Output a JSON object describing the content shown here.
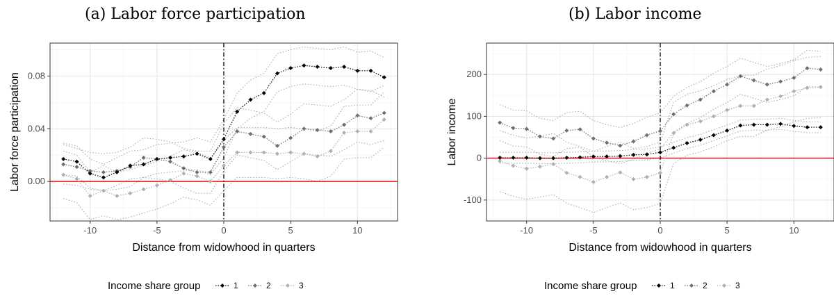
{
  "chart_data": [
    {
      "type": "line",
      "title": "(a) Labor force participation",
      "xlabel": "Distance from widowhood in quarters",
      "ylabel": "Labor force participation",
      "xlim": [
        -13,
        13
      ],
      "ylim": [
        -0.03,
        0.105
      ],
      "xticks": [
        -10,
        -5,
        0,
        5,
        10
      ],
      "yticks": [
        0.0,
        0.04,
        0.08
      ],
      "ytick_labels": [
        "0.00",
        "0.04",
        "0.08"
      ],
      "reference_lines": {
        "h": 0,
        "v": 0
      },
      "legend": {
        "title": "Income share group",
        "entries": [
          "1",
          "2",
          "3"
        ],
        "placement": "bottom"
      },
      "x": [
        -12,
        -11,
        -10,
        -9,
        -8,
        -7,
        -6,
        -5,
        -4,
        -3,
        -2,
        -1,
        0,
        1,
        2,
        3,
        4,
        5,
        6,
        7,
        8,
        9,
        10,
        11,
        12
      ],
      "series": [
        {
          "name": "1",
          "color": "#000000",
          "values": [
            0.017,
            0.015,
            0.006,
            0.003,
            0.007,
            0.012,
            0.013,
            0.017,
            0.018,
            0.019,
            0.021,
            0.017,
            0.032,
            0.053,
            0.062,
            0.067,
            0.082,
            0.086,
            0.088,
            0.087,
            0.086,
            0.087,
            0.084,
            0.084,
            0.079
          ],
          "ci_low": [
            0.005,
            0.004,
            -0.005,
            -0.007,
            -0.003,
            0.002,
            0.003,
            0.006,
            0.007,
            0.008,
            0.009,
            0.005,
            0.018,
            0.04,
            0.048,
            0.053,
            0.068,
            0.072,
            0.074,
            0.073,
            0.072,
            0.073,
            0.07,
            0.069,
            0.064
          ],
          "ci_high": [
            0.029,
            0.027,
            0.017,
            0.013,
            0.018,
            0.023,
            0.024,
            0.028,
            0.029,
            0.03,
            0.033,
            0.03,
            0.047,
            0.067,
            0.077,
            0.082,
            0.097,
            0.1,
            0.102,
            0.101,
            0.1,
            0.102,
            0.098,
            0.099,
            0.094
          ]
        },
        {
          "name": "2",
          "color": "#6e6e6e",
          "values": [
            0.013,
            0.011,
            0.008,
            0.007,
            0.008,
            0.011,
            0.018,
            0.017,
            0.015,
            0.01,
            0.007,
            0.007,
            0.026,
            0.038,
            0.036,
            0.034,
            0.027,
            0.033,
            0.04,
            0.039,
            0.038,
            0.043,
            0.05,
            0.048,
            0.052
          ],
          "ci_low": [
            -0.002,
            -0.003,
            -0.006,
            -0.007,
            -0.006,
            -0.004,
            0.003,
            0.002,
            0.0,
            -0.005,
            -0.009,
            -0.009,
            0.008,
            0.02,
            0.018,
            0.016,
            0.009,
            0.015,
            0.021,
            0.02,
            0.019,
            0.024,
            0.03,
            0.028,
            0.031
          ],
          "ci_high": [
            0.028,
            0.025,
            0.022,
            0.021,
            0.022,
            0.026,
            0.033,
            0.032,
            0.03,
            0.025,
            0.023,
            0.023,
            0.044,
            0.056,
            0.054,
            0.052,
            0.045,
            0.051,
            0.059,
            0.058,
            0.057,
            0.062,
            0.07,
            0.068,
            0.073
          ]
        },
        {
          "name": "3",
          "color": "#b0b0b0",
          "values": [
            0.005,
            0.002,
            -0.011,
            -0.007,
            -0.011,
            -0.009,
            -0.006,
            -0.003,
            0.001,
            0.006,
            0.004,
            0.0,
            0.012,
            0.022,
            0.022,
            0.022,
            0.021,
            0.022,
            0.021,
            0.019,
            0.023,
            0.037,
            0.038,
            0.038,
            0.047
          ],
          "ci_low": [
            -0.013,
            -0.016,
            -0.029,
            -0.026,
            -0.029,
            -0.027,
            -0.024,
            -0.021,
            -0.017,
            -0.012,
            -0.014,
            -0.018,
            -0.007,
            0.003,
            0.003,
            0.003,
            0.002,
            0.003,
            0.002,
            0.0,
            0.004,
            0.017,
            0.018,
            0.018,
            0.026
          ],
          "ci_high": [
            0.023,
            0.02,
            0.007,
            0.012,
            0.007,
            0.009,
            0.012,
            0.015,
            0.019,
            0.024,
            0.022,
            0.018,
            0.031,
            0.041,
            0.041,
            0.041,
            0.04,
            0.041,
            0.04,
            0.038,
            0.042,
            0.057,
            0.058,
            0.058,
            0.068
          ]
        }
      ]
    },
    {
      "type": "line",
      "title": "(b) Labor income",
      "xlabel": "Distance from widowhood in quarters",
      "ylabel": "Labor income",
      "xlim": [
        -13,
        13
      ],
      "ylim": [
        -150,
        275
      ],
      "xticks": [
        -10,
        -5,
        0,
        5,
        10
      ],
      "yticks": [
        -100,
        0,
        100,
        200
      ],
      "ytick_labels": [
        "-100",
        "0",
        "100",
        "200"
      ],
      "reference_lines": {
        "h": 0,
        "v": 0
      },
      "legend": {
        "title": "Income share group",
        "entries": [
          "1",
          "2",
          "3"
        ],
        "placement": "bottom"
      },
      "x": [
        -12,
        -11,
        -10,
        -9,
        -8,
        -7,
        -6,
        -5,
        -4,
        -3,
        -2,
        -1,
        0,
        1,
        2,
        3,
        4,
        5,
        6,
        7,
        8,
        9,
        10,
        11,
        12
      ],
      "series": [
        {
          "name": "1",
          "color": "#000000",
          "values": [
            1,
            1,
            1,
            0,
            0,
            1,
            2,
            4,
            4,
            5,
            8,
            9,
            14,
            25,
            36,
            44,
            55,
            66,
            78,
            80,
            80,
            82,
            77,
            74,
            74
          ],
          "ci_low": [
            -12,
            -12,
            -12,
            -13,
            -13,
            -12,
            -11,
            -9,
            -9,
            -8,
            -5,
            -4,
            1,
            12,
            23,
            31,
            42,
            53,
            65,
            67,
            67,
            69,
            64,
            61,
            61
          ],
          "ci_high": [
            14,
            14,
            14,
            13,
            13,
            14,
            15,
            17,
            17,
            18,
            21,
            22,
            27,
            38,
            49,
            57,
            68,
            79,
            91,
            93,
            93,
            95,
            90,
            87,
            87
          ]
        },
        {
          "name": "2",
          "color": "#6e6e6e",
          "values": [
            85,
            72,
            70,
            52,
            47,
            66,
            69,
            47,
            37,
            30,
            40,
            55,
            65,
            105,
            126,
            140,
            160,
            176,
            196,
            186,
            176,
            183,
            192,
            215,
            212
          ],
          "ci_low": [
            42,
            29,
            27,
            9,
            4,
            23,
            26,
            4,
            -6,
            -13,
            -3,
            12,
            22,
            62,
            83,
            97,
            117,
            133,
            153,
            143,
            133,
            140,
            149,
            172,
            169
          ],
          "ci_high": [
            128,
            115,
            113,
            95,
            90,
            109,
            112,
            90,
            80,
            73,
            83,
            98,
            108,
            148,
            169,
            183,
            203,
            219,
            239,
            229,
            219,
            226,
            235,
            258,
            255
          ]
        },
        {
          "name": "3",
          "color": "#b0b0b0",
          "values": [
            -7,
            -18,
            -25,
            -20,
            -14,
            -35,
            -45,
            -57,
            -45,
            -34,
            -50,
            -45,
            -35,
            60,
            80,
            88,
            100,
            115,
            125,
            125,
            140,
            148,
            160,
            168,
            170
          ],
          "ci_low": [
            -80,
            -91,
            -98,
            -93,
            -87,
            -108,
            -118,
            -130,
            -118,
            -107,
            -123,
            -118,
            -108,
            -13,
            7,
            15,
            27,
            42,
            52,
            52,
            67,
            75,
            87,
            95,
            97
          ],
          "ci_high": [
            66,
            55,
            48,
            53,
            59,
            38,
            28,
            16,
            28,
            39,
            23,
            28,
            38,
            133,
            153,
            161,
            173,
            188,
            198,
            198,
            213,
            221,
            233,
            241,
            243
          ]
        }
      ]
    }
  ]
}
